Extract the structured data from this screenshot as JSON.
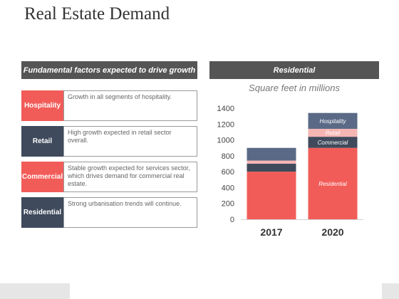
{
  "page": {
    "title": "Real Estate Demand"
  },
  "left_panel": {
    "header": "Fundamental factors expected to drive growth",
    "rows": [
      {
        "tag": "Hospitality",
        "text": "Growth in all segments of hospitality.",
        "color": "#f25c58"
      },
      {
        "tag": "Retail",
        "text": "High growth expected in retail sector overall.",
        "color": "#3f4a5c"
      },
      {
        "tag": "Commercial",
        "text": "Stable growth expected for services sector, which drives demand for commercial real estate.",
        "color": "#f25c58"
      },
      {
        "tag": "Residential",
        "text": "Strong urbanisation trends will continue.",
        "color": "#3f4a5c"
      }
    ]
  },
  "right_panel": {
    "header": "Residential",
    "subtitle": "Square feet in millions"
  },
  "chart_data": {
    "type": "bar",
    "stacked": true,
    "title": "Square feet in millions",
    "categories": [
      "2017",
      "2020"
    ],
    "ylim": [
      0,
      1400
    ],
    "yticks": [
      "0",
      "200",
      "400",
      "600",
      "800",
      "1000",
      "1200",
      "1400"
    ],
    "series": [
      {
        "name": "Residential",
        "values": [
          600,
          900
        ],
        "color": "#f25c58"
      },
      {
        "name": "Commercial",
        "values": [
          100,
          140
        ],
        "color": "#3f4a5c"
      },
      {
        "name": "Retail",
        "values": [
          40,
          100
        ],
        "color": "#f5b5b3"
      },
      {
        "name": "Hospitality",
        "values": [
          160,
          200
        ],
        "color": "#5a6a86"
      }
    ],
    "labels_on_category": "2020"
  }
}
